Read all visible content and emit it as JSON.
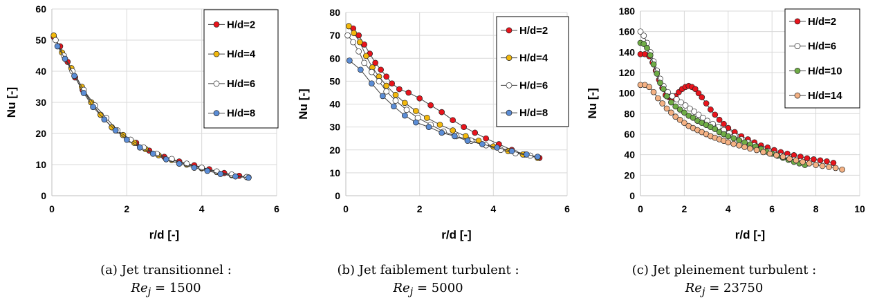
{
  "captions": [
    {
      "prefix": "(a)",
      "text": "Jet transitionnel :",
      "eq": "Re_j = 1500"
    },
    {
      "prefix": "(b)",
      "text": "Jet faiblement turbulent :",
      "eq": "Re_j = 5000"
    },
    {
      "prefix": "(c)",
      "text": "Jet pleinement turbulent :",
      "eq": "Re_j = 23750"
    }
  ],
  "chart_data": [
    {
      "type": "scatter",
      "xlabel": "r/d [-]",
      "ylabel": "Nu [-]",
      "xlim": [
        0,
        6
      ],
      "xticks": [
        0,
        2,
        4,
        6
      ],
      "ylim": [
        0,
        60
      ],
      "yticks": [
        0,
        10,
        20,
        30,
        40,
        50,
        60
      ],
      "grid": true,
      "legend_placement": "top-right",
      "series": [
        {
          "name": "H/d=2",
          "color": "#e8141c",
          "x": [
            0.05,
            0.22,
            0.42,
            0.62,
            0.82,
            1.05,
            1.3,
            1.6,
            1.9,
            2.25,
            2.6,
            3.0,
            3.4,
            3.8,
            4.2,
            4.6,
            5.0,
            5.25
          ],
          "y": [
            51,
            48,
            43,
            38,
            34,
            30,
            26,
            22,
            19.5,
            17,
            14.5,
            12.5,
            11,
            9.8,
            8.5,
            7.3,
            6.4,
            5.9
          ]
        },
        {
          "name": "H/d=4",
          "color": "#f2b80c",
          "x": [
            0.05,
            0.27,
            0.52,
            0.8,
            1.05,
            1.3,
            1.6,
            1.9,
            2.2,
            2.5,
            2.85,
            3.2,
            3.6,
            4.0,
            4.4,
            4.8,
            5.2
          ],
          "y": [
            51.5,
            46,
            41,
            35,
            30,
            26,
            22,
            19.5,
            17,
            15,
            13,
            11.5,
            10,
            8.8,
            7.6,
            6.6,
            6
          ]
        },
        {
          "name": "H/d=6",
          "color": "#ffffff",
          "x": [
            0.1,
            0.32,
            0.55,
            0.85,
            1.15,
            1.45,
            1.75,
            2.1,
            2.45,
            2.8,
            3.2,
            3.6,
            4.0,
            4.4,
            4.8,
            5.2
          ],
          "y": [
            50,
            45,
            40,
            34,
            29,
            25,
            21,
            18,
            15.5,
            13.5,
            11.8,
            10.3,
            9,
            7.8,
            6.8,
            6
          ]
        },
        {
          "name": "H/d=8",
          "color": "#5b8dd6",
          "x": [
            0.15,
            0.35,
            0.6,
            0.85,
            1.1,
            1.4,
            1.7,
            2.0,
            2.35,
            2.7,
            3.05,
            3.4,
            3.8,
            4.15,
            4.5,
            4.9,
            5.25
          ],
          "y": [
            48,
            44,
            38.5,
            33,
            28.5,
            24.5,
            21,
            18,
            15.5,
            13.5,
            11.7,
            10.3,
            9,
            8,
            7,
            6.2,
            5.8
          ]
        }
      ]
    },
    {
      "type": "scatter",
      "xlabel": "r/d [-]",
      "ylabel": "Nu [-]",
      "xlim": [
        0,
        6
      ],
      "xticks": [
        0,
        2,
        4,
        6
      ],
      "ylim": [
        0,
        80
      ],
      "yticks": [
        0,
        10,
        20,
        30,
        40,
        50,
        60,
        70,
        80
      ],
      "grid": true,
      "legend_placement": "top-right",
      "series": [
        {
          "name": "H/d=2",
          "color": "#e8141c",
          "x": [
            0.08,
            0.2,
            0.35,
            0.5,
            0.65,
            0.8,
            0.95,
            1.1,
            1.25,
            1.45,
            1.7,
            2.0,
            2.3,
            2.6,
            2.9,
            3.2,
            3.5,
            3.8,
            4.15,
            4.5,
            4.85,
            5.25
          ],
          "y": [
            74,
            73,
            70,
            66,
            62,
            58,
            55,
            52,
            49,
            46.5,
            45,
            42.5,
            39.5,
            36.5,
            33,
            30,
            27.5,
            25,
            22.5,
            20,
            18,
            16.5
          ]
        },
        {
          "name": "H/d=4",
          "color": "#f2b80c",
          "x": [
            0.08,
            0.22,
            0.38,
            0.55,
            0.72,
            0.9,
            1.1,
            1.35,
            1.6,
            1.9,
            2.2,
            2.55,
            2.9,
            3.25,
            3.6,
            4.0,
            4.4,
            4.8,
            5.2
          ],
          "y": [
            74,
            71,
            67,
            61,
            56,
            52,
            48,
            44,
            40.5,
            37,
            34,
            31,
            28.5,
            26,
            24,
            21.5,
            19.5,
            18,
            16.5
          ]
        },
        {
          "name": "H/d=6",
          "color": "#ffffff",
          "x": [
            0.05,
            0.2,
            0.35,
            0.5,
            0.7,
            0.9,
            1.1,
            1.35,
            1.65,
            1.95,
            2.3,
            2.65,
            3.0,
            3.4,
            3.8,
            4.2,
            4.6,
            5.0,
            5.2
          ],
          "y": [
            70,
            67,
            63,
            58,
            54,
            50,
            45.5,
            41.5,
            37.5,
            34,
            31,
            28,
            26,
            24,
            22,
            20,
            18.5,
            17.5,
            17
          ]
        },
        {
          "name": "H/d=8",
          "color": "#5b8dd6",
          "x": [
            0.1,
            0.4,
            0.7,
            1.0,
            1.3,
            1.6,
            1.9,
            2.25,
            2.6,
            2.95,
            3.3,
            3.7,
            4.1,
            4.5,
            4.9,
            5.2
          ],
          "y": [
            59,
            55,
            49,
            43.5,
            39,
            35,
            32,
            30,
            27.5,
            26,
            24,
            22.5,
            21,
            19.5,
            18,
            17
          ]
        }
      ]
    },
    {
      "type": "scatter",
      "xlabel": "r/d [-]",
      "ylabel": "Nu [-]",
      "xlim": [
        0,
        10
      ],
      "xticks": [
        0,
        2,
        4,
        6,
        8,
        10
      ],
      "ylim": [
        0,
        180
      ],
      "yticks": [
        0,
        20,
        40,
        60,
        80,
        100,
        120,
        140,
        160,
        180
      ],
      "grid": true,
      "legend_placement": "top-right",
      "series": [
        {
          "name": "H/d=2",
          "color": "#e8141c",
          "x": [
            0.0,
            0.2,
            0.4,
            0.55,
            0.7,
            0.85,
            1.0,
            1.15,
            1.3,
            1.45,
            1.6,
            1.75,
            1.9,
            2.05,
            2.2,
            2.35,
            2.5,
            2.65,
            2.8,
            3.0,
            3.2,
            3.4,
            3.6,
            3.8,
            4.0,
            4.3,
            4.6,
            4.9,
            5.2,
            5.5,
            5.8,
            6.1,
            6.4,
            6.7,
            7.0,
            7.3,
            7.6,
            7.9,
            8.2,
            8.5,
            8.8
          ],
          "y": [
            138,
            138,
            136,
            130,
            122,
            113,
            105,
            98,
            96,
            95,
            97,
            101,
            104,
            106,
            107,
            106,
            104,
            100,
            96,
            90,
            84,
            79,
            74,
            70,
            66,
            62,
            58,
            55,
            52,
            49,
            47,
            44.5,
            42.5,
            41,
            39.5,
            38,
            36.5,
            35.5,
            34.5,
            33.5,
            32
          ]
        },
        {
          "name": "H/d=6",
          "color": "#ffffff",
          "x": [
            0.0,
            0.15,
            0.3,
            0.45,
            0.6,
            0.75,
            0.9,
            1.05,
            1.25,
            1.45,
            1.65,
            1.85,
            2.05,
            2.25,
            2.45,
            2.65,
            2.85,
            3.05,
            3.3,
            3.55,
            3.8,
            4.05,
            4.3,
            4.6,
            4.9,
            5.2,
            5.5,
            5.8,
            6.1,
            6.4,
            6.7,
            7.0,
            7.3,
            7.6
          ],
          "y": [
            160,
            156,
            149,
            140,
            131,
            122,
            114,
            107,
            101,
            97,
            94,
            91,
            88,
            85,
            82,
            79,
            76,
            73,
            70,
            67,
            64,
            61,
            58,
            55,
            52,
            49,
            46,
            43.5,
            41,
            39,
            37,
            35,
            33.5,
            31.5
          ]
        },
        {
          "name": "H/d=10",
          "color": "#6fac46",
          "x": [
            0.0,
            0.15,
            0.3,
            0.45,
            0.6,
            0.75,
            0.9,
            1.05,
            1.2,
            1.4,
            1.6,
            1.8,
            2.0,
            2.2,
            2.4,
            2.6,
            2.8,
            3.0,
            3.2,
            3.4,
            3.6,
            3.8,
            4.0,
            4.25,
            4.5,
            4.75,
            5.0,
            5.25,
            5.5,
            5.75,
            6.0,
            6.25,
            6.5,
            6.75,
            7.0,
            7.25,
            7.5
          ],
          "y": [
            149,
            148,
            144,
            137,
            128,
            119,
            110,
            104,
            97,
            91,
            87,
            84,
            81,
            78,
            76,
            73,
            71,
            69,
            67,
            65,
            62,
            60,
            58,
            56,
            54,
            52,
            50,
            48,
            45.5,
            43,
            41,
            39,
            37,
            35,
            33,
            31.5,
            30
          ]
        },
        {
          "name": "H/d=14",
          "color": "#f4b183",
          "x": [
            0.0,
            0.2,
            0.4,
            0.6,
            0.8,
            1.0,
            1.2,
            1.4,
            1.6,
            1.8,
            2.0,
            2.2,
            2.4,
            2.6,
            2.8,
            3.0,
            3.2,
            3.4,
            3.6,
            3.8,
            4.0,
            4.25,
            4.5,
            4.75,
            5.0,
            5.3,
            5.6,
            5.9,
            6.2,
            6.5,
            6.8,
            7.1,
            7.4,
            7.7,
            8.0,
            8.3,
            8.6,
            8.9,
            9.2
          ],
          "y": [
            108,
            108,
            106,
            101,
            95,
            90,
            85,
            81,
            77,
            74,
            71,
            68,
            66,
            64,
            62,
            60,
            58,
            56.5,
            55,
            53.5,
            52,
            50.5,
            49,
            47.5,
            46,
            44.5,
            42.5,
            41,
            39.5,
            38,
            36,
            34.5,
            33,
            31.5,
            30,
            29,
            28,
            27,
            25.5
          ]
        }
      ]
    }
  ]
}
